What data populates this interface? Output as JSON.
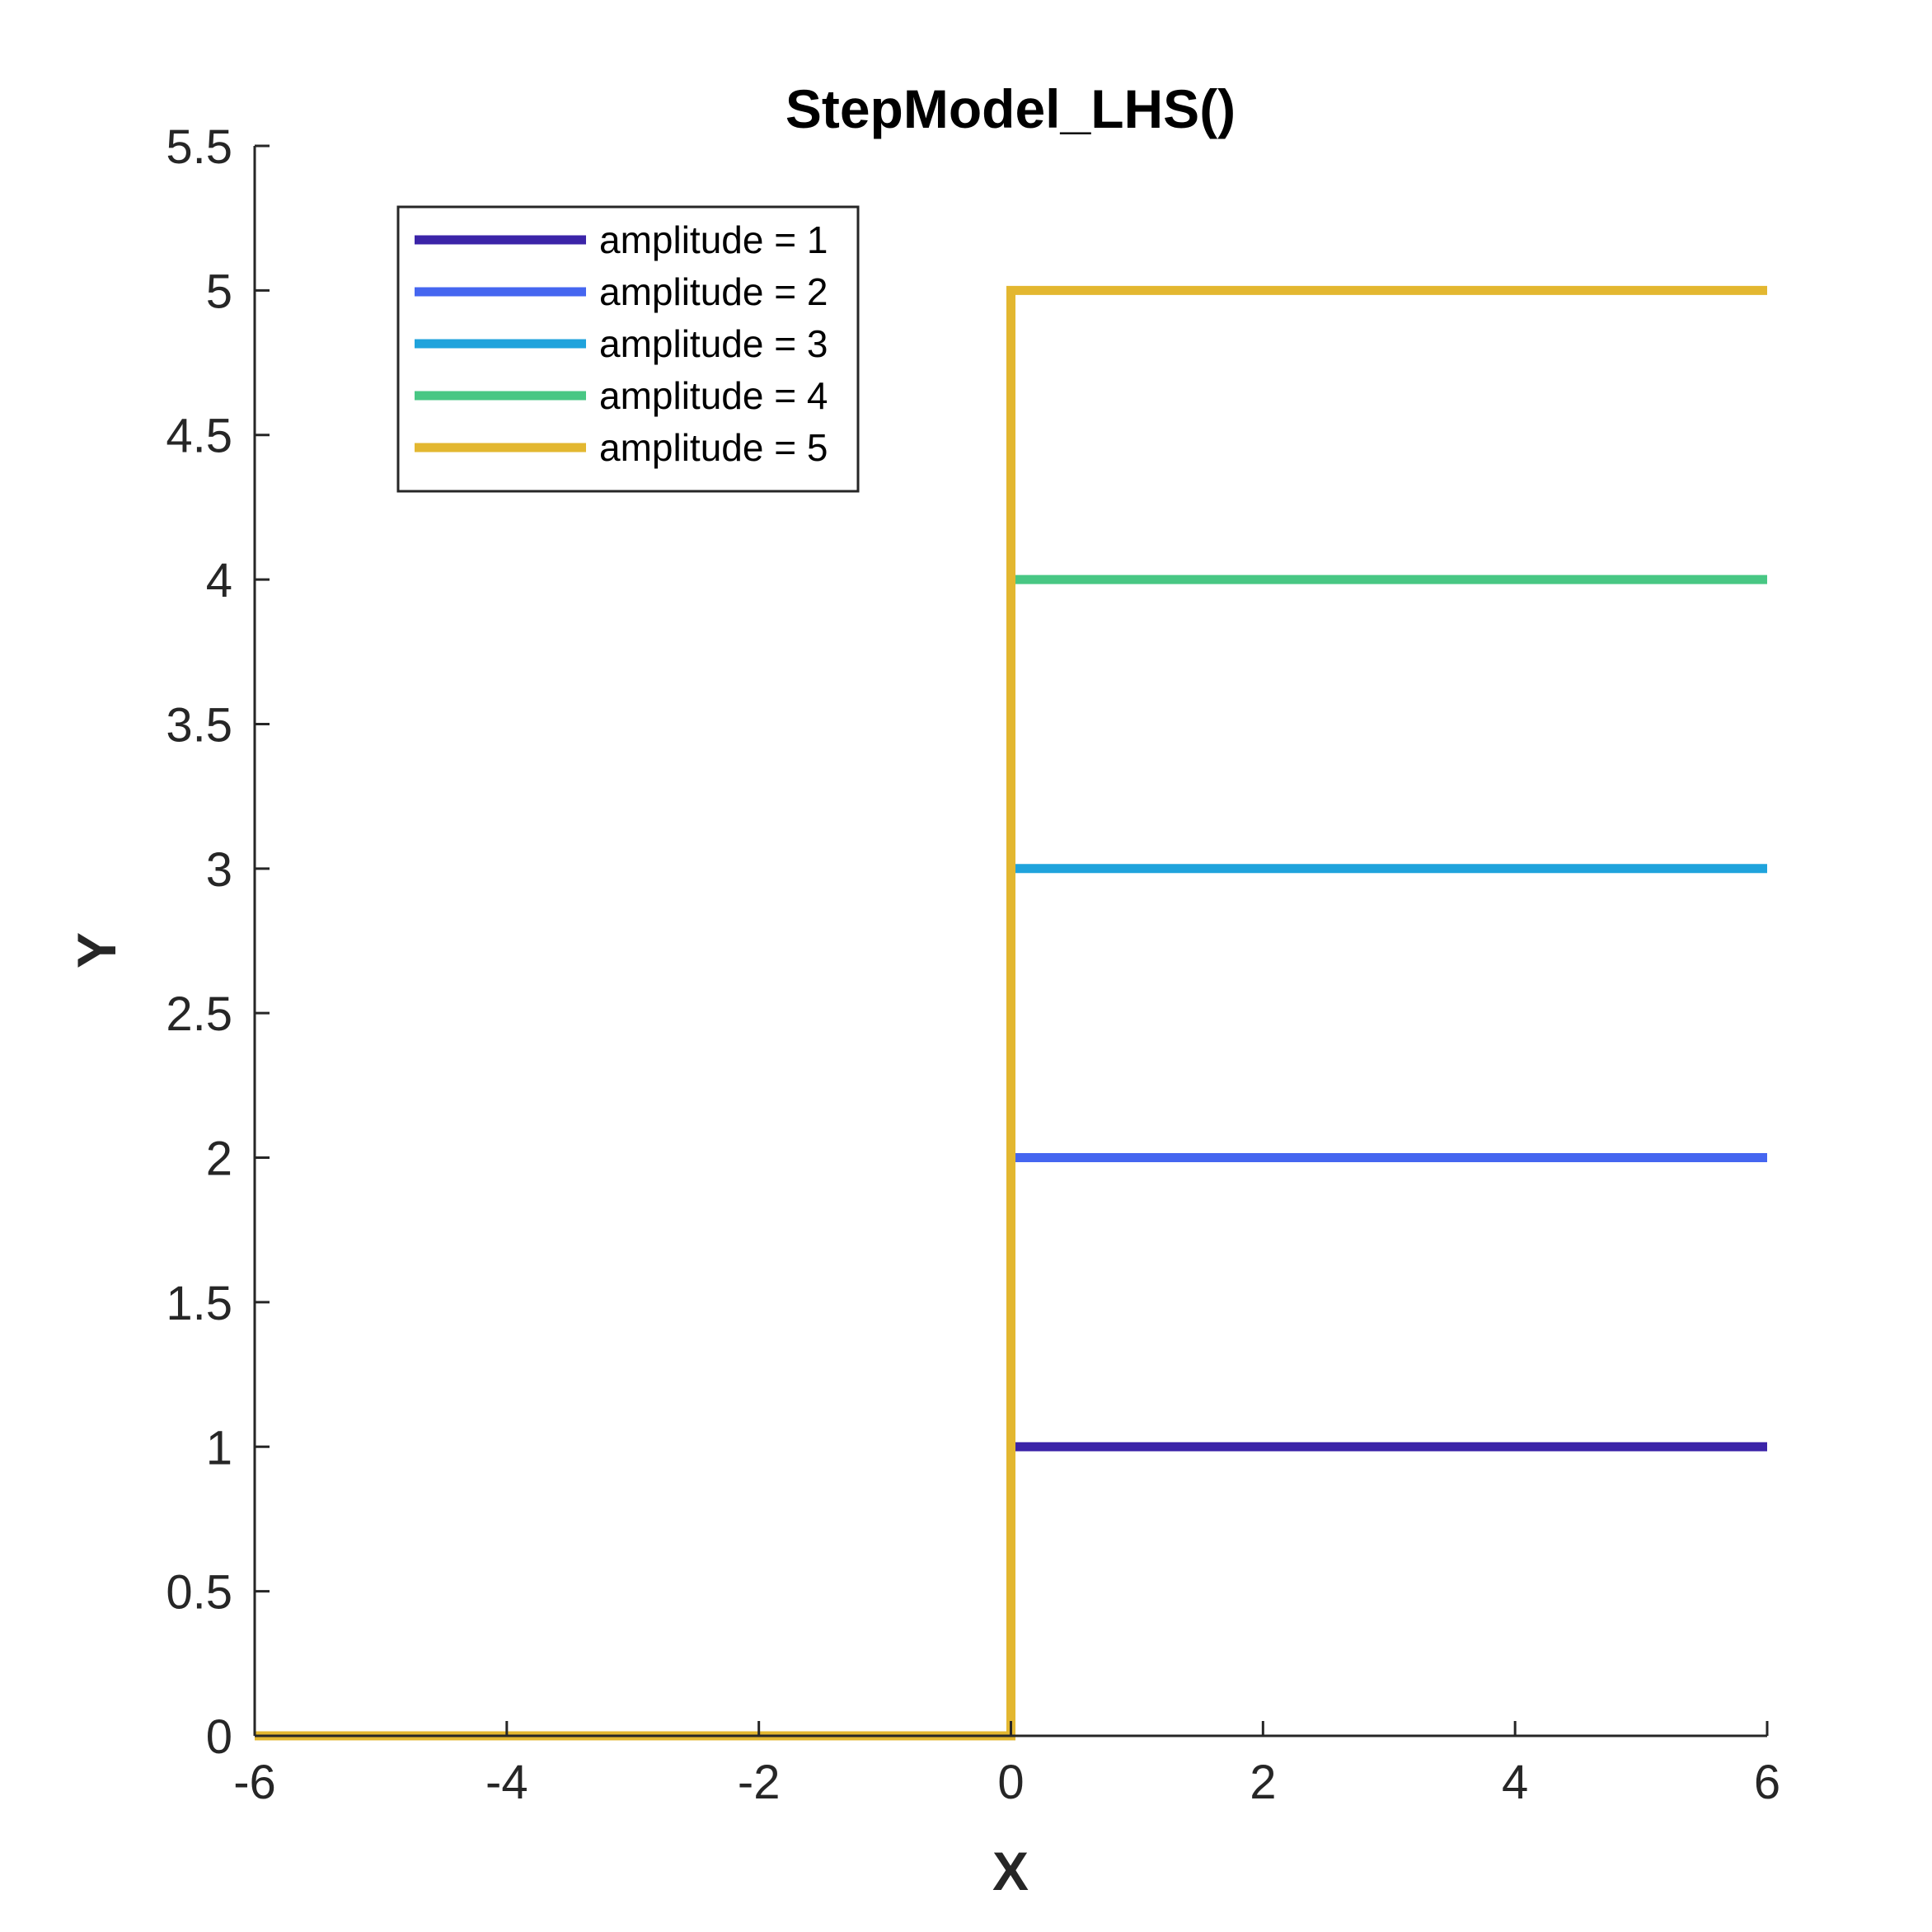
{
  "chart_data": {
    "type": "line",
    "title": "StepModel_LHS()",
    "xlabel": "X",
    "ylabel": "Y",
    "xlim": [
      -6,
      6
    ],
    "ylim": [
      0,
      5.5
    ],
    "xticks": [
      -6,
      -4,
      -2,
      0,
      2,
      4,
      6
    ],
    "xtick_labels": [
      "-6",
      "-4",
      "-2",
      "0",
      "2",
      "4",
      "6"
    ],
    "yticks": [
      0,
      0.5,
      1,
      1.5,
      2,
      2.5,
      3,
      3.5,
      4,
      4.5,
      5,
      5.5
    ],
    "ytick_labels": [
      "0",
      "0.5",
      "1",
      "1.5",
      "2",
      "2.5",
      "3",
      "3.5",
      "4",
      "4.5",
      "5",
      "5.5"
    ],
    "grid": false,
    "legend_position": "top-left",
    "series": [
      {
        "name": "amplitude = 1",
        "color": "#3b24a8",
        "x": [
          -6,
          0,
          0,
          6
        ],
        "y": [
          0,
          0,
          1,
          1
        ]
      },
      {
        "name": "amplitude = 2",
        "color": "#4566f0",
        "x": [
          -6,
          0,
          0,
          6
        ],
        "y": [
          0,
          0,
          2,
          2
        ]
      },
      {
        "name": "amplitude = 3",
        "color": "#1fa3dc",
        "x": [
          -6,
          0,
          0,
          6
        ],
        "y": [
          0,
          0,
          3,
          3
        ]
      },
      {
        "name": "amplitude = 4",
        "color": "#48c784",
        "x": [
          -6,
          0,
          0,
          6
        ],
        "y": [
          0,
          0,
          4,
          4
        ]
      },
      {
        "name": "amplitude = 5",
        "color": "#e3b730",
        "x": [
          -6,
          0,
          0,
          6
        ],
        "y": [
          0,
          0,
          5,
          5
        ]
      }
    ]
  }
}
